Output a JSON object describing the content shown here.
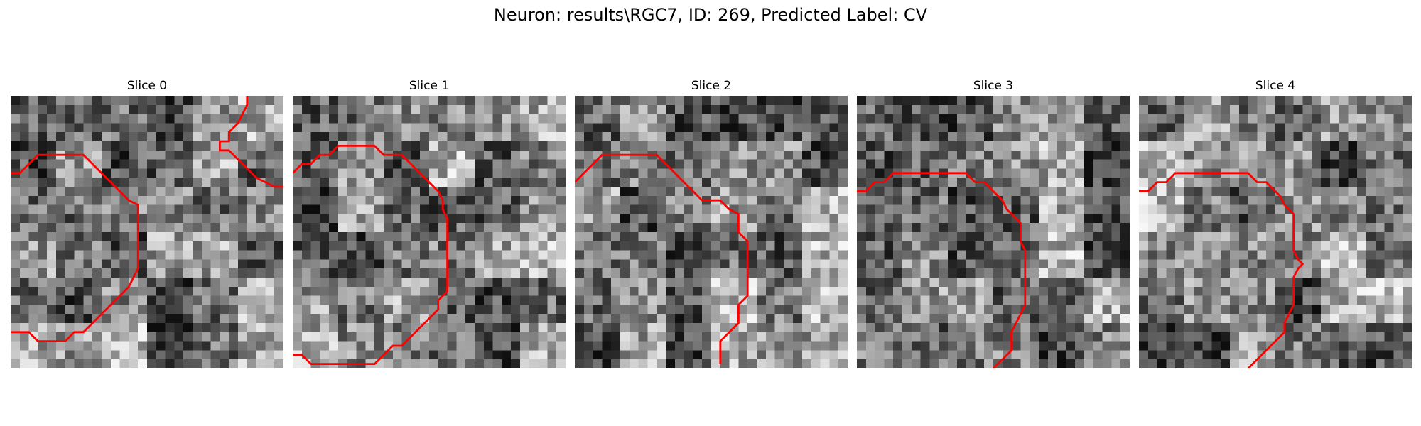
{
  "figure": {
    "title": "Neuron: results\\RGC7, ID: 269, Predicted Label: CV",
    "contour_color": "#ff0000",
    "colormap": "gray",
    "panels": [
      {
        "title": "Slice 0",
        "seed": 11,
        "contours": [
          [
            [
              0,
              8.5
            ],
            [
              1,
              8.5
            ],
            [
              2,
              7.5
            ],
            [
              3,
              6.5
            ],
            [
              4,
              6.5
            ],
            [
              5,
              6.5
            ],
            [
              6,
              6.5
            ],
            [
              7,
              6.5
            ],
            [
              8,
              6.5
            ],
            [
              9,
              7.5
            ],
            [
              10,
              8.5
            ],
            [
              11,
              9.5
            ],
            [
              12,
              10.5
            ],
            [
              13,
              11.5
            ],
            [
              14,
              12
            ],
            [
              14,
              13
            ],
            [
              14,
              14
            ],
            [
              14,
              15
            ],
            [
              14,
              16
            ],
            [
              14,
              17
            ],
            [
              14,
              18
            ],
            [
              14,
              19
            ],
            [
              13.5,
              20
            ],
            [
              13,
              21
            ],
            [
              12,
              22
            ],
            [
              11,
              23
            ],
            [
              10,
              24
            ],
            [
              9,
              25
            ],
            [
              8,
              26
            ],
            [
              7,
              26
            ],
            [
              6,
              27
            ],
            [
              5,
              27
            ],
            [
              4,
              27
            ],
            [
              3,
              27
            ],
            [
              2,
              26
            ],
            [
              1,
              26
            ],
            [
              0,
              26
            ]
          ],
          [
            [
              26,
              0
            ],
            [
              26,
              1
            ],
            [
              25.5,
              2
            ],
            [
              25,
              3
            ],
            [
              24,
              4
            ],
            [
              24,
              5
            ],
            [
              23,
              5
            ],
            [
              23,
              6
            ],
            [
              24,
              6
            ],
            [
              25,
              7
            ],
            [
              26,
              8
            ],
            [
              27,
              9
            ],
            [
              28,
              9.5
            ],
            [
              29,
              10
            ],
            [
              30,
              10
            ]
          ]
        ]
      },
      {
        "title": "Slice 1",
        "seed": 23,
        "contours": [
          [
            [
              0,
              8.5
            ],
            [
              1,
              7.5
            ],
            [
              2,
              7.5
            ],
            [
              3,
              6.5
            ],
            [
              4,
              6.5
            ],
            [
              5,
              5.5
            ],
            [
              6,
              5.5
            ],
            [
              7,
              5.5
            ],
            [
              8,
              5.5
            ],
            [
              9,
              5.5
            ],
            [
              10,
              6.5
            ],
            [
              11,
              6.5
            ],
            [
              12,
              6.5
            ],
            [
              13,
              7.5
            ],
            [
              14,
              8.5
            ],
            [
              15,
              9.5
            ],
            [
              16,
              10.5
            ],
            [
              16.5,
              11.5
            ],
            [
              16.5,
              12.5
            ],
            [
              17,
              13.5
            ],
            [
              17,
              14.5
            ],
            [
              17,
              15.5
            ],
            [
              17,
              16.5
            ],
            [
              17,
              17.5
            ],
            [
              17,
              18.5
            ],
            [
              17,
              19.5
            ],
            [
              17,
              20.5
            ],
            [
              17,
              21.5
            ],
            [
              16,
              22.5
            ],
            [
              16,
              23.5
            ],
            [
              15,
              24.5
            ],
            [
              14,
              25.5
            ],
            [
              13,
              26.5
            ],
            [
              12,
              27.5
            ],
            [
              11,
              27.5
            ],
            [
              10,
              28.5
            ],
            [
              9,
              29.5
            ],
            [
              8,
              29.5
            ],
            [
              7,
              29.5
            ],
            [
              6,
              29.5
            ],
            [
              5,
              29.5
            ],
            [
              4,
              29.5
            ],
            [
              3,
              29.5
            ],
            [
              2,
              29.5
            ],
            [
              1,
              28.5
            ],
            [
              0,
              28.5
            ]
          ]
        ]
      },
      {
        "title": "Slice 2",
        "seed": 37,
        "contours": [
          [
            [
              0,
              9.5
            ],
            [
              1,
              8.5
            ],
            [
              2,
              7.5
            ],
            [
              3,
              6.5
            ],
            [
              4,
              6.5
            ],
            [
              5,
              6.5
            ],
            [
              6,
              6.5
            ],
            [
              7,
              6.5
            ],
            [
              8,
              6.5
            ],
            [
              9,
              6.5
            ],
            [
              10,
              7.5
            ],
            [
              11,
              8.5
            ],
            [
              12,
              9.5
            ],
            [
              13,
              10.5
            ],
            [
              14,
              11.5
            ],
            [
              15,
              11.5
            ],
            [
              16,
              11.5
            ],
            [
              16.5,
              12
            ],
            [
              17,
              12.5
            ],
            [
              18,
              13
            ],
            [
              18,
              14
            ],
            [
              18,
              15
            ],
            [
              19,
              16
            ],
            [
              19,
              17
            ],
            [
              19,
              18
            ],
            [
              19,
              19
            ],
            [
              19,
              20
            ],
            [
              19,
              21
            ],
            [
              19,
              22
            ],
            [
              18,
              23
            ],
            [
              18,
              24
            ],
            [
              18,
              25
            ],
            [
              17,
              26
            ],
            [
              16,
              27
            ],
            [
              16,
              28
            ],
            [
              16,
              29.5
            ]
          ]
        ]
      },
      {
        "title": "Slice 3",
        "seed": 53,
        "contours": [
          [
            [
              0,
              10.5
            ],
            [
              1,
              10.5
            ],
            [
              2,
              9.5
            ],
            [
              3,
              9.5
            ],
            [
              4,
              8.5
            ],
            [
              5,
              8.5
            ],
            [
              6,
              8.5
            ],
            [
              7,
              8.5
            ],
            [
              8,
              8.5
            ],
            [
              9,
              8.5
            ],
            [
              10,
              8.5
            ],
            [
              11,
              8.5
            ],
            [
              12,
              8.5
            ],
            [
              13,
              9.5
            ],
            [
              14,
              9.5
            ],
            [
              15,
              10.5
            ],
            [
              16,
              11.5
            ],
            [
              16.5,
              12.5
            ],
            [
              17,
              13
            ],
            [
              18,
              14
            ],
            [
              18,
              15
            ],
            [
              18,
              16
            ],
            [
              18.5,
              17
            ],
            [
              18.5,
              18
            ],
            [
              18.5,
              19
            ],
            [
              18.5,
              20
            ],
            [
              18.5,
              21
            ],
            [
              18.5,
              22
            ],
            [
              18.5,
              23
            ],
            [
              18,
              24
            ],
            [
              17.5,
              25
            ],
            [
              17,
              26
            ],
            [
              17,
              27
            ],
            [
              17,
              28
            ],
            [
              16,
              29
            ],
            [
              15,
              30
            ]
          ]
        ]
      },
      {
        "title": "Slice 4",
        "seed": 71,
        "contours": [
          [
            [
              0,
              10.5
            ],
            [
              1,
              10.5
            ],
            [
              2,
              9.5
            ],
            [
              3,
              9.5
            ],
            [
              4,
              8.5
            ],
            [
              5,
              8.5
            ],
            [
              6,
              8.5
            ],
            [
              7,
              8.5
            ],
            [
              8,
              8.5
            ],
            [
              9,
              8.5
            ],
            [
              10,
              8.5
            ],
            [
              11,
              8.5
            ],
            [
              12,
              8.5
            ],
            [
              13,
              9.5
            ],
            [
              14,
              9.5
            ],
            [
              15,
              10.5
            ],
            [
              15.5,
              11
            ],
            [
              16,
              12
            ],
            [
              17,
              13
            ],
            [
              17,
              14
            ],
            [
              17,
              15
            ],
            [
              17,
              16
            ],
            [
              17,
              17
            ],
            [
              17.5,
              18
            ],
            [
              18,
              18.5
            ],
            [
              17.5,
              19
            ],
            [
              17,
              20
            ],
            [
              17,
              21
            ],
            [
              17,
              22
            ],
            [
              17,
              23
            ],
            [
              16.5,
              24
            ],
            [
              16,
              25
            ],
            [
              16,
              26
            ],
            [
              15,
              27
            ],
            [
              14,
              28
            ],
            [
              13,
              29
            ],
            [
              12,
              30
            ]
          ]
        ]
      }
    ]
  }
}
